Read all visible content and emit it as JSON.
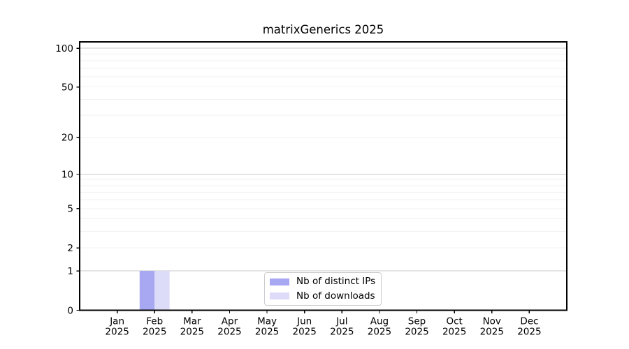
{
  "chart_data": {
    "type": "bar",
    "title": "matrixGenerics 2025",
    "categories": [
      "Jan",
      "Feb",
      "Mar",
      "Apr",
      "May",
      "Jun",
      "Jul",
      "Aug",
      "Sep",
      "Oct",
      "Nov",
      "Dec"
    ],
    "x_year": "2025",
    "series": [
      {
        "name": "Nb of distinct IPs",
        "color": "#a7a7f2",
        "values": [
          0,
          1,
          0,
          0,
          0,
          0,
          0,
          0,
          0,
          0,
          0,
          0
        ]
      },
      {
        "name": "Nb of downloads",
        "color": "#dcdcf8",
        "values": [
          0,
          1,
          0,
          0,
          0,
          0,
          0,
          0,
          0,
          0,
          0,
          0
        ]
      }
    ],
    "yscale": "log1p",
    "ylim": [
      0,
      112
    ],
    "yticks": [
      0,
      1,
      2,
      5,
      10,
      20,
      50,
      100
    ],
    "ytick_labels": [
      "0",
      "1",
      "2",
      "5",
      "10",
      "20",
      "50",
      "100"
    ],
    "y_major_gridlines": [
      1,
      10,
      100
    ],
    "y_minor_gridlines": [
      2,
      3,
      4,
      5,
      6,
      7,
      8,
      9,
      20,
      30,
      40,
      50,
      60,
      70,
      80,
      90
    ],
    "grid": true,
    "legend_position": "lower center",
    "bar_width_fraction": 0.4,
    "colors": {
      "grid_major": "#c9c9c9",
      "grid_minor": "#f1f1f1",
      "axis": "#000000",
      "tick_label": "#000000",
      "legend_border": "#cccccc"
    }
  }
}
